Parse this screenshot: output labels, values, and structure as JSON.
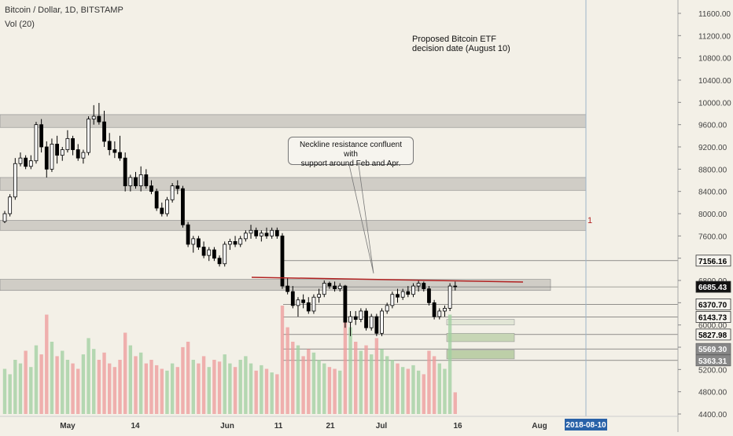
{
  "header": {
    "title": "Bitcoin / Dollar, 1D, BITSTAMP",
    "indicator": "Vol (20)"
  },
  "annotations": {
    "etf_note_line1": "Proposed Bitcoin ETF",
    "etf_note_line2": "decision date (August 10)",
    "callout_line1": "Neckline resistance confluent with",
    "callout_line2": "support around Feb and Apr.",
    "marker_label": "1"
  },
  "colors": {
    "background": "#f3f0e7",
    "bull": "#ffffff",
    "bear": "#000000",
    "zone": "#c9c7c0",
    "neckline": "#b22222",
    "vol_up": "#9fcf9f",
    "vol_down": "#ee9a9a"
  },
  "chart_data": {
    "type": "candlestick",
    "symbol": "Bitcoin / Dollar",
    "interval": "1D",
    "exchange": "BITSTAMP",
    "price_axis_ticks": [
      11600,
      11200,
      10800,
      10400,
      10000,
      9600,
      9200,
      8800,
      8400,
      8000,
      7600,
      7200,
      6800,
      6400,
      6000,
      5600,
      5200,
      4800,
      4400
    ],
    "ylim": [
      4200,
      11900
    ],
    "x_labels": [
      "May",
      "14",
      "Jun",
      "11",
      "21",
      "Jul",
      "16",
      "Aug",
      "2018-08-10"
    ],
    "price_labels": [
      {
        "text": "7156.16",
        "value": 7156.16,
        "style": "light"
      },
      {
        "text": "6685.43",
        "value": 6685.43,
        "style": "dark"
      },
      {
        "text": "6370.70",
        "value": 6370.7,
        "style": "light"
      },
      {
        "text": "6143.73",
        "value": 6143.73,
        "style": "light"
      },
      {
        "text": "5827.98",
        "value": 5827.98,
        "style": "light"
      },
      {
        "text": "5569.30",
        "value": 5569.3,
        "style": "grey"
      },
      {
        "text": "5363.31",
        "value": 5363.31,
        "style": "grey"
      }
    ],
    "zones": [
      {
        "low": 9550,
        "high": 9780,
        "extends": "to-date-line"
      },
      {
        "low": 8420,
        "high": 8650,
        "extends": "to-date-line"
      },
      {
        "low": 7700,
        "high": 7880,
        "extends": "to-date-line"
      },
      {
        "low": 6620,
        "high": 6820,
        "extends": "partial"
      }
    ],
    "neckline": {
      "value": 6800
    },
    "candles": [
      {
        "o": 7860,
        "h": 8050,
        "l": 7830,
        "c": 8000
      },
      {
        "o": 8000,
        "h": 8350,
        "l": 7950,
        "c": 8300
      },
      {
        "o": 8300,
        "h": 9000,
        "l": 8250,
        "c": 8900
      },
      {
        "o": 8900,
        "h": 9100,
        "l": 8850,
        "c": 9000
      },
      {
        "o": 9000,
        "h": 9050,
        "l": 8800,
        "c": 8850
      },
      {
        "o": 8850,
        "h": 9050,
        "l": 8800,
        "c": 8950
      },
      {
        "o": 8950,
        "h": 9650,
        "l": 8900,
        "c": 9600
      },
      {
        "o": 9600,
        "h": 9700,
        "l": 9100,
        "c": 9200
      },
      {
        "o": 9200,
        "h": 9300,
        "l": 8650,
        "c": 8800
      },
      {
        "o": 8800,
        "h": 9350,
        "l": 8750,
        "c": 9250
      },
      {
        "o": 9250,
        "h": 9400,
        "l": 8900,
        "c": 9050
      },
      {
        "o": 9050,
        "h": 9200,
        "l": 8950,
        "c": 9150
      },
      {
        "o": 9150,
        "h": 9500,
        "l": 9100,
        "c": 9350
      },
      {
        "o": 9350,
        "h": 9400,
        "l": 9050,
        "c": 9150
      },
      {
        "o": 9150,
        "h": 9250,
        "l": 8950,
        "c": 9000
      },
      {
        "o": 9000,
        "h": 9150,
        "l": 8900,
        "c": 9100
      },
      {
        "o": 9100,
        "h": 9750,
        "l": 9050,
        "c": 9700
      },
      {
        "o": 9700,
        "h": 9950,
        "l": 9600,
        "c": 9750
      },
      {
        "o": 9750,
        "h": 9990,
        "l": 9600,
        "c": 9650
      },
      {
        "o": 9650,
        "h": 9850,
        "l": 9200,
        "c": 9300
      },
      {
        "o": 9300,
        "h": 9450,
        "l": 9050,
        "c": 9150
      },
      {
        "o": 9150,
        "h": 9300,
        "l": 9000,
        "c": 9100
      },
      {
        "o": 9100,
        "h": 9400,
        "l": 8950,
        "c": 9000
      },
      {
        "o": 9000,
        "h": 9100,
        "l": 8400,
        "c": 8500
      },
      {
        "o": 8500,
        "h": 8700,
        "l": 8400,
        "c": 8650
      },
      {
        "o": 8650,
        "h": 8750,
        "l": 8450,
        "c": 8500
      },
      {
        "o": 8500,
        "h": 8850,
        "l": 8400,
        "c": 8700
      },
      {
        "o": 8700,
        "h": 8800,
        "l": 8450,
        "c": 8500
      },
      {
        "o": 8500,
        "h": 8600,
        "l": 8350,
        "c": 8400
      },
      {
        "o": 8400,
        "h": 8450,
        "l": 8050,
        "c": 8100
      },
      {
        "o": 8100,
        "h": 8200,
        "l": 7950,
        "c": 8000
      },
      {
        "o": 8000,
        "h": 8300,
        "l": 7950,
        "c": 8250
      },
      {
        "o": 8250,
        "h": 8550,
        "l": 8200,
        "c": 8500
      },
      {
        "o": 8500,
        "h": 8600,
        "l": 8350,
        "c": 8450
      },
      {
        "o": 8450,
        "h": 8500,
        "l": 7750,
        "c": 7800
      },
      {
        "o": 7800,
        "h": 7850,
        "l": 7400,
        "c": 7450
      },
      {
        "o": 7450,
        "h": 7600,
        "l": 7300,
        "c": 7550
      },
      {
        "o": 7550,
        "h": 7600,
        "l": 7350,
        "c": 7400
      },
      {
        "o": 7400,
        "h": 7500,
        "l": 7200,
        "c": 7250
      },
      {
        "o": 7250,
        "h": 7400,
        "l": 7150,
        "c": 7350
      },
      {
        "o": 7350,
        "h": 7400,
        "l": 7150,
        "c": 7200
      },
      {
        "o": 7200,
        "h": 7250,
        "l": 7050,
        "c": 7100
      },
      {
        "o": 7100,
        "h": 7500,
        "l": 7050,
        "c": 7450
      },
      {
        "o": 7450,
        "h": 7550,
        "l": 7350,
        "c": 7500
      },
      {
        "o": 7500,
        "h": 7600,
        "l": 7400,
        "c": 7450
      },
      {
        "o": 7450,
        "h": 7600,
        "l": 7400,
        "c": 7550
      },
      {
        "o": 7550,
        "h": 7700,
        "l": 7500,
        "c": 7650
      },
      {
        "o": 7650,
        "h": 7800,
        "l": 7550,
        "c": 7700
      },
      {
        "o": 7700,
        "h": 7750,
        "l": 7550,
        "c": 7600
      },
      {
        "o": 7600,
        "h": 7700,
        "l": 7500,
        "c": 7650
      },
      {
        "o": 7650,
        "h": 7750,
        "l": 7550,
        "c": 7600
      },
      {
        "o": 7600,
        "h": 7750,
        "l": 7550,
        "c": 7700
      },
      {
        "o": 7700,
        "h": 7750,
        "l": 7550,
        "c": 7600
      },
      {
        "o": 7600,
        "h": 7650,
        "l": 6650,
        "c": 6700
      },
      {
        "o": 6700,
        "h": 6850,
        "l": 6550,
        "c": 6600
      },
      {
        "o": 6600,
        "h": 6700,
        "l": 6300,
        "c": 6350
      },
      {
        "o": 6350,
        "h": 6500,
        "l": 6150,
        "c": 6450
      },
      {
        "o": 6450,
        "h": 6550,
        "l": 6300,
        "c": 6400
      },
      {
        "o": 6400,
        "h": 6500,
        "l": 6200,
        "c": 6250
      },
      {
        "o": 6250,
        "h": 6550,
        "l": 6200,
        "c": 6500
      },
      {
        "o": 6500,
        "h": 6650,
        "l": 6400,
        "c": 6550
      },
      {
        "o": 6550,
        "h": 6800,
        "l": 6500,
        "c": 6750
      },
      {
        "o": 6750,
        "h": 6780,
        "l": 6650,
        "c": 6700
      },
      {
        "o": 6700,
        "h": 6780,
        "l": 6600,
        "c": 6650
      },
      {
        "o": 6650,
        "h": 6750,
        "l": 6600,
        "c": 6700
      },
      {
        "o": 6700,
        "h": 6720,
        "l": 5950,
        "c": 6050
      },
      {
        "o": 6050,
        "h": 6250,
        "l": 5800,
        "c": 6150
      },
      {
        "o": 6150,
        "h": 6250,
        "l": 6000,
        "c": 6100
      },
      {
        "o": 6100,
        "h": 6300,
        "l": 6050,
        "c": 6250
      },
      {
        "o": 6250,
        "h": 6300,
        "l": 5900,
        "c": 5950
      },
      {
        "o": 5950,
        "h": 6200,
        "l": 5900,
        "c": 6150
      },
      {
        "o": 6150,
        "h": 6200,
        "l": 5800,
        "c": 5850
      },
      {
        "o": 5850,
        "h": 6300,
        "l": 5800,
        "c": 6250
      },
      {
        "o": 6250,
        "h": 6400,
        "l": 6200,
        "c": 6350
      },
      {
        "o": 6350,
        "h": 6600,
        "l": 6300,
        "c": 6550
      },
      {
        "o": 6550,
        "h": 6650,
        "l": 6400,
        "c": 6500
      },
      {
        "o": 6500,
        "h": 6650,
        "l": 6450,
        "c": 6600
      },
      {
        "o": 6600,
        "h": 6700,
        "l": 6500,
        "c": 6550
      },
      {
        "o": 6550,
        "h": 6750,
        "l": 6500,
        "c": 6700
      },
      {
        "o": 6700,
        "h": 6800,
        "l": 6600,
        "c": 6750
      },
      {
        "o": 6750,
        "h": 6780,
        "l": 6600,
        "c": 6650
      },
      {
        "o": 6650,
        "h": 6700,
        "l": 6350,
        "c": 6400
      },
      {
        "o": 6400,
        "h": 6450,
        "l": 6100,
        "c": 6150
      },
      {
        "o": 6150,
        "h": 6300,
        "l": 6100,
        "c": 6250
      },
      {
        "o": 6250,
        "h": 6350,
        "l": 6150,
        "c": 6300
      },
      {
        "o": 6300,
        "h": 6750,
        "l": 6250,
        "c": 6700
      },
      {
        "o": 6700,
        "h": 6780,
        "l": 6620,
        "c": 6685
      }
    ],
    "volume": [
      0.25,
      0.22,
      0.3,
      0.28,
      0.35,
      0.26,
      0.38,
      0.33,
      0.55,
      0.4,
      0.32,
      0.35,
      0.3,
      0.28,
      0.25,
      0.33,
      0.42,
      0.36,
      0.3,
      0.34,
      0.28,
      0.26,
      0.3,
      0.45,
      0.38,
      0.32,
      0.34,
      0.28,
      0.3,
      0.27,
      0.25,
      0.24,
      0.28,
      0.26,
      0.37,
      0.4,
      0.3,
      0.28,
      0.32,
      0.26,
      0.3,
      0.29,
      0.33,
      0.28,
      0.26,
      0.3,
      0.32,
      0.28,
      0.24,
      0.27,
      0.25,
      0.23,
      0.22,
      0.6,
      0.48,
      0.4,
      0.38,
      0.32,
      0.36,
      0.34,
      0.3,
      0.28,
      0.26,
      0.25,
      0.24,
      0.62,
      0.48,
      0.4,
      0.35,
      0.38,
      0.33,
      0.42,
      0.36,
      0.32,
      0.3,
      0.28,
      0.26,
      0.25,
      0.27,
      0.24,
      0.22,
      0.35,
      0.32,
      0.28,
      0.25,
      0.55,
      0.12
    ]
  }
}
